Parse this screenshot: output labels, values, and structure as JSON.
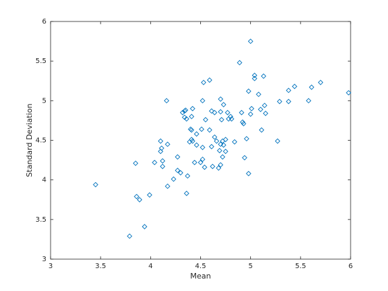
{
  "chart_data": {
    "type": "scatter",
    "xlabel": "Mean",
    "ylabel": "Standard Deviation",
    "color": "#0072bd",
    "xlim": [
      3,
      6
    ],
    "ylim": [
      3,
      6
    ],
    "xticks": [
      3,
      3.5,
      4,
      4.5,
      5,
      5.5,
      6
    ],
    "yticks": [
      3,
      3.5,
      4,
      4.5,
      5,
      5.5,
      6
    ],
    "x": [
      3.45,
      3.79,
      3.86,
      3.89,
      3.94,
      3.99,
      3.85,
      4.04,
      4.1,
      4.11,
      4.1,
      4.12,
      4.12,
      4.16,
      4.17,
      4.17,
      4.23,
      4.27,
      4.27,
      4.3,
      4.32,
      4.34,
      4.34,
      4.36,
      4.35,
      4.36,
      4.37,
      4.4,
      4.41,
      4.41,
      4.39,
      4.41,
      4.42,
      4.42,
      4.44,
      4.46,
      4.46,
      4.5,
      4.51,
      4.52,
      4.52,
      4.53,
      4.52,
      4.54,
      4.55,
      4.59,
      4.59,
      4.61,
      4.61,
      4.62,
      4.64,
      4.64,
      4.66,
      4.69,
      4.68,
      4.7,
      4.7,
      4.7,
      4.7,
      4.71,
      4.72,
      4.72,
      4.73,
      4.73,
      4.75,
      4.75,
      4.77,
      4.78,
      4.8,
      4.81,
      4.84,
      4.89,
      4.91,
      4.92,
      4.93,
      4.94,
      4.96,
      4.98,
      4.98,
      5.0,
      5.0,
      5.01,
      5.04,
      5.04,
      5.08,
      5.1,
      5.11,
      5.13,
      5.14,
      5.15,
      5.27,
      5.29,
      5.38,
      5.38,
      5.44,
      5.58,
      5.61,
      5.7,
      5.98
    ],
    "values": [
      3.94,
      3.29,
      3.79,
      3.75,
      3.41,
      3.81,
      4.21,
      4.22,
      4.36,
      4.4,
      4.49,
      4.24,
      4.17,
      5.0,
      4.45,
      3.92,
      4.01,
      4.29,
      4.12,
      4.09,
      4.85,
      4.87,
      4.79,
      4.77,
      4.88,
      3.83,
      4.05,
      4.64,
      4.8,
      4.51,
      4.48,
      4.63,
      4.49,
      4.9,
      4.22,
      4.44,
      4.58,
      4.22,
      4.64,
      4.26,
      5.0,
      5.23,
      4.41,
      4.16,
      4.76,
      5.26,
      4.63,
      4.87,
      4.42,
      4.17,
      4.85,
      4.54,
      4.49,
      4.37,
      4.15,
      4.19,
      5.02,
      4.86,
      4.45,
      4.76,
      4.49,
      4.29,
      4.95,
      4.44,
      4.51,
      4.36,
      4.85,
      4.77,
      4.8,
      4.77,
      4.48,
      5.48,
      4.85,
      4.73,
      4.71,
      4.28,
      4.52,
      5.12,
      4.08,
      4.83,
      5.75,
      4.9,
      5.28,
      5.32,
      5.08,
      4.89,
      4.63,
      5.31,
      4.94,
      4.84,
      4.49,
      4.99,
      5.13,
      4.99,
      5.18,
      5.0,
      5.17,
      5.23,
      5.1
    ]
  }
}
